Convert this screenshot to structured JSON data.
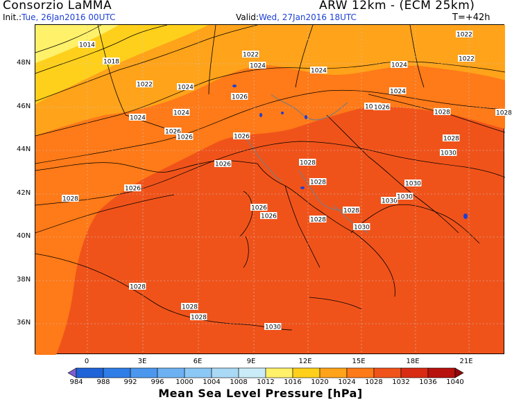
{
  "header": {
    "organization": "Consorzio LaMMA",
    "model": "ARW 12km - (ECM 25km)",
    "init_label": "Init.:",
    "init_value": "Tue, 26Jan2016 00UTC",
    "valid_label": "Valid:",
    "valid_value": "Wed, 27Jan2016 18UTC",
    "forecast_step": "T=+42h"
  },
  "map": {
    "lat_labels": [
      "48N",
      "46N",
      "44N",
      "42N",
      "40N",
      "38N",
      "36N"
    ],
    "lon_labels": [
      "0",
      "3E",
      "6E",
      "9E",
      "12E",
      "15E",
      "18E",
      "21E"
    ],
    "isobar_labels": [
      "1014",
      "1018",
      "1022",
      "1022",
      "1024",
      "1024",
      "1024",
      "1026",
      "1024",
      "1026",
      "1026",
      "1026",
      "1026",
      "1028",
      "1028",
      "1028",
      "1028",
      "1030",
      "1030",
      "1030",
      "1030",
      "1028",
      "1030",
      "1028",
      "1028",
      "1028",
      "1028",
      "1030",
      "1026",
      "1026",
      "1026",
      "1028",
      "1024",
      "1022",
      "1022",
      "1024",
      "1024",
      "1024",
      "1026",
      "1028"
    ]
  },
  "colorbar": {
    "title": "Mean Sea Level Pressure [hPa]",
    "labels": [
      "984",
      "988",
      "992",
      "996",
      "1000",
      "1004",
      "1008",
      "1012",
      "1016",
      "1020",
      "1024",
      "1028",
      "1032",
      "1036",
      "1040"
    ],
    "colors": [
      "#7a5fd0",
      "#1f63d8",
      "#2f7de6",
      "#4b97ee",
      "#6db1f2",
      "#8cc8f5",
      "#aad9f6",
      "#c9ecf8",
      "#fff16a",
      "#ffd01b",
      "#ffa31a",
      "#ff7a18",
      "#f0531a",
      "#d92b14",
      "#b7120e",
      "#8e0909"
    ]
  }
}
